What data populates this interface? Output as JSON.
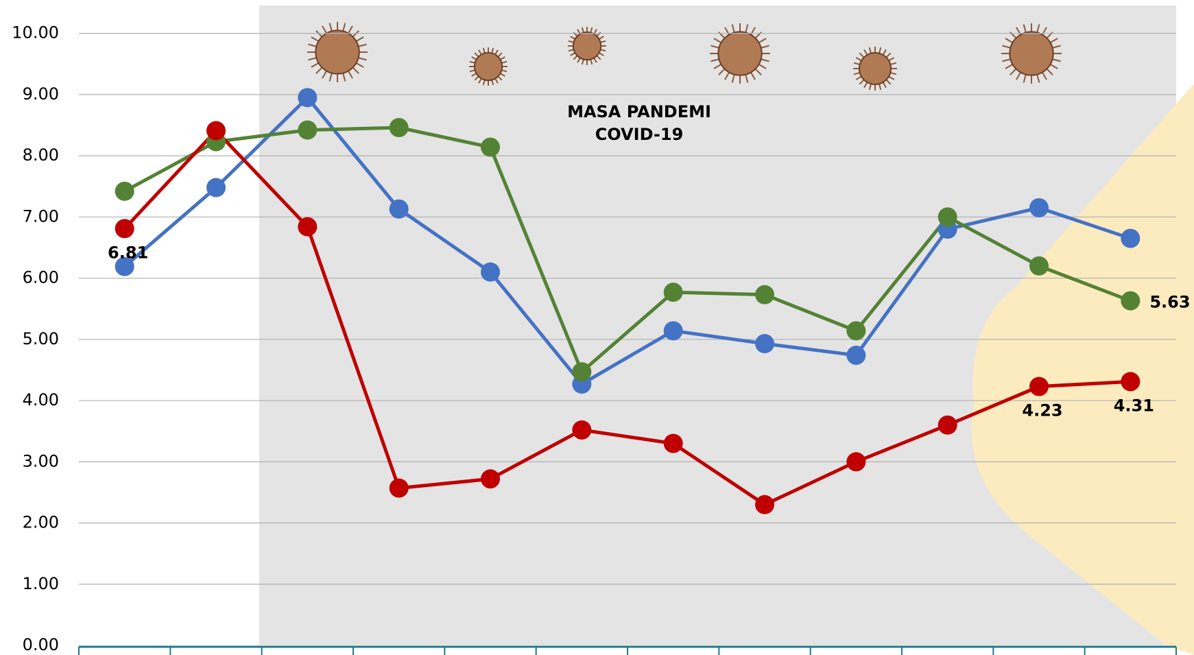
{
  "chart_data": {
    "type": "line",
    "annotation": [
      "MASA PANDEMI",
      "COVID-19"
    ],
    "categories": [
      null,
      null,
      null,
      null,
      null,
      null,
      null,
      null,
      null,
      null,
      null,
      null
    ],
    "series": [
      {
        "color": "#4472c4",
        "values": [
          6.19,
          7.48,
          8.95,
          7.13,
          6.1,
          4.27,
          5.14,
          4.93,
          4.74,
          6.8,
          7.15,
          6.65
        ]
      },
      {
        "color": "#548235",
        "values": [
          7.42,
          8.23,
          8.42,
          8.46,
          8.14,
          4.47,
          5.77,
          5.73,
          5.14,
          7.0,
          6.2,
          5.63
        ],
        "value_labels": [
          null,
          null,
          null,
          null,
          null,
          null,
          null,
          null,
          null,
          null,
          null,
          "5.63"
        ]
      },
      {
        "color": "#c00000",
        "values": [
          6.81,
          8.41,
          6.84,
          2.57,
          2.72,
          3.52,
          3.3,
          2.3,
          3.0,
          3.6,
          4.23,
          4.31
        ],
        "value_labels": [
          "6.81",
          null,
          null,
          null,
          null,
          null,
          null,
          null,
          null,
          null,
          "4.23",
          "4.31"
        ]
      }
    ],
    "ylim": [
      0,
      10.5
    ],
    "yticks": [
      {
        "value": 0,
        "label": "0.00"
      },
      {
        "value": 1,
        "label": "1.00"
      },
      {
        "value": 2,
        "label": "2.00"
      },
      {
        "value": 3,
        "label": "3.00"
      },
      {
        "value": 4,
        "label": "4.00"
      },
      {
        "value": 5,
        "label": "5.00"
      },
      {
        "value": 6,
        "label": "6.00"
      },
      {
        "value": 7,
        "label": "7.00"
      },
      {
        "value": 8,
        "label": "8.00"
      },
      {
        "value": 9,
        "label": "9.00"
      },
      {
        "value": 10,
        "label": "10.00"
      }
    ],
    "grid": true
  }
}
